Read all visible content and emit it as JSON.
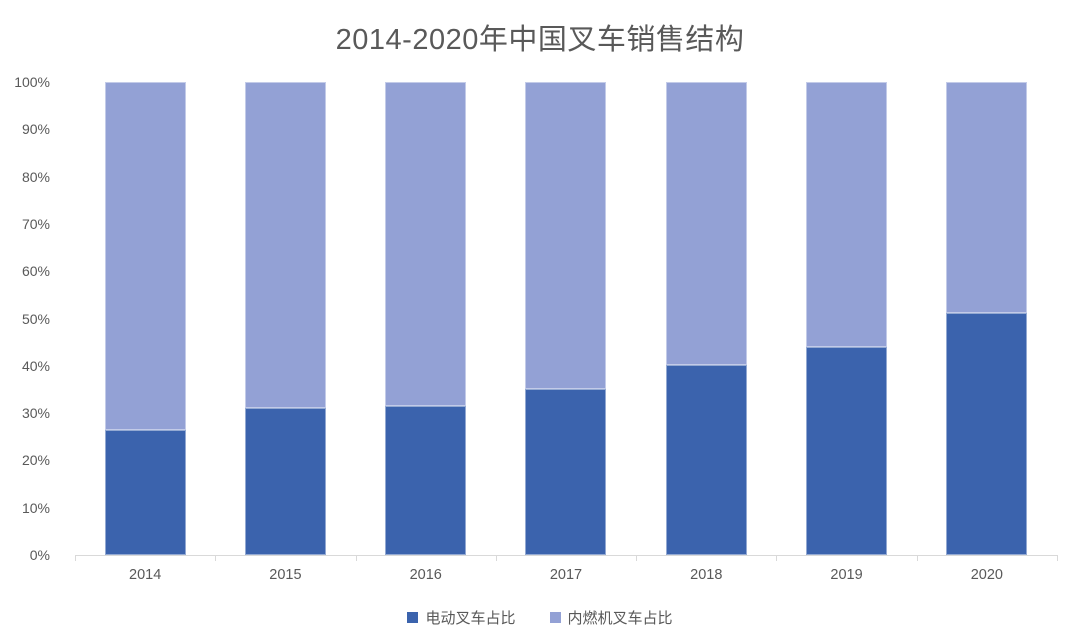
{
  "title": "2014-2020年中国叉车销售结构",
  "colors": {
    "electric": "#3b63ad",
    "combustion": "#93a1d5",
    "axis_line": "#d9d9d9",
    "text": "#595959"
  },
  "legend": {
    "items": [
      {
        "key": "electric-forklift",
        "label": "电动叉车占比",
        "color": "#3b63ad"
      },
      {
        "key": "ic-forklift",
        "label": "内燃机叉车占比",
        "color": "#93a1d5"
      }
    ],
    "position": "bottom"
  },
  "chart_data": {
    "type": "bar",
    "stacked": true,
    "percent_stacked": true,
    "title": "2014-2020年中国叉车销售结构",
    "categories": [
      "2014",
      "2015",
      "2016",
      "2017",
      "2018",
      "2019",
      "2020"
    ],
    "series": [
      {
        "key": "electric-forklift",
        "name": "电动叉车占比",
        "color": "#3b63ad",
        "values": [
          26.5,
          31.0,
          31.5,
          35.0,
          40.2,
          43.9,
          51.2
        ]
      },
      {
        "key": "ic-forklift",
        "name": "内燃机叉车占比",
        "color": "#93a1d5",
        "values": [
          73.5,
          69.0,
          68.5,
          65.0,
          59.8,
          56.1,
          48.8
        ]
      }
    ],
    "xlabel": "",
    "ylabel": "",
    "ylim": [
      0,
      100
    ],
    "ytick_step": 10,
    "ytick_suffix": "%",
    "ytick_labels": [
      "0%",
      "10%",
      "20%",
      "30%",
      "40%",
      "50%",
      "60%",
      "70%",
      "80%",
      "90%",
      "100%"
    ],
    "grid": false,
    "legend_position": "bottom"
  }
}
